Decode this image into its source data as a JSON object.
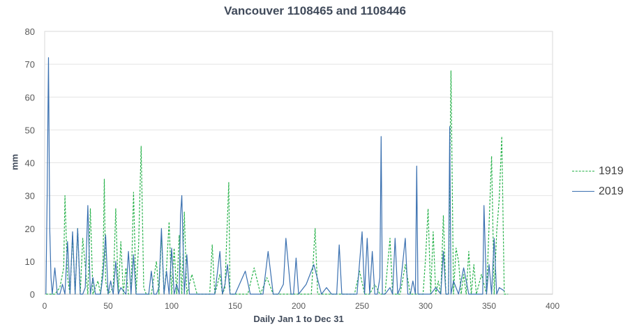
{
  "chart_data": {
    "type": "line",
    "title": "Vancouver 1108465 and 1108446",
    "xlabel": "Daily Jan 1 to Dec 31",
    "ylabel": "mm",
    "xlim": [
      0,
      400
    ],
    "ylim": [
      0,
      80
    ],
    "xticks": [
      0,
      50,
      100,
      150,
      200,
      250,
      300,
      350,
      400
    ],
    "yticks": [
      0,
      10,
      20,
      30,
      40,
      50,
      60,
      70,
      80
    ],
    "grid": "horizontal",
    "legend_position": "right",
    "series": [
      {
        "name": "1919",
        "color": "#27b24a",
        "dash": "dashed",
        "x": [
          1,
          8,
          12,
          15,
          16,
          18,
          20,
          22,
          24,
          26,
          28,
          30,
          34,
          36,
          38,
          42,
          44,
          46,
          47,
          48,
          50,
          54,
          56,
          58,
          60,
          62,
          64,
          66,
          68,
          70,
          72,
          74,
          76,
          78,
          80,
          84,
          88,
          90,
          92,
          94,
          96,
          98,
          100,
          102,
          104,
          106,
          108,
          110,
          112,
          116,
          120,
          124,
          130,
          132,
          134,
          138,
          140,
          142,
          145,
          146,
          148,
          150,
          160,
          165,
          170,
          175,
          180,
          185,
          195,
          205,
          210,
          213,
          215,
          220,
          225,
          240,
          244,
          248,
          252,
          256,
          260,
          264,
          268,
          272,
          274,
          276,
          280,
          284,
          288,
          290,
          294,
          298,
          300,
          302,
          304,
          306,
          308,
          310,
          312,
          314,
          316,
          318,
          320,
          322,
          324,
          326,
          328,
          330,
          332,
          334,
          336,
          338,
          340,
          344,
          348,
          352,
          354,
          356,
          358,
          360,
          362,
          365
        ],
        "y": [
          0,
          0,
          2,
          8,
          30,
          5,
          0,
          18,
          0,
          20,
          0,
          17,
          0,
          26,
          0,
          4,
          0,
          10,
          35,
          4,
          0,
          2,
          26,
          0,
          16,
          0,
          8,
          0,
          0,
          31,
          0,
          15,
          45,
          2,
          0,
          0,
          10,
          0,
          18,
          0,
          8,
          22,
          0,
          14,
          0,
          18,
          0,
          25,
          0,
          6,
          0,
          0,
          0,
          15,
          0,
          6,
          0,
          2,
          34,
          0,
          0,
          0,
          0,
          8,
          0,
          5,
          0,
          0,
          0,
          0,
          0,
          20,
          0,
          0,
          0,
          0,
          0,
          7,
          0,
          0,
          3,
          0,
          0,
          17,
          0,
          0,
          0,
          9,
          0,
          0,
          0,
          0,
          11,
          26,
          0,
          19,
          0,
          4,
          0,
          24,
          0,
          0,
          68,
          0,
          14,
          10,
          0,
          6,
          0,
          13,
          0,
          9,
          0,
          6,
          0,
          42,
          0,
          19,
          29,
          48,
          0,
          0
        ]
      },
      {
        "name": "2019",
        "color": "#3a70b0",
        "dash": "solid",
        "x": [
          1,
          2,
          3,
          4,
          5,
          6,
          8,
          10,
          12,
          14,
          16,
          18,
          20,
          22,
          24,
          26,
          28,
          30,
          32,
          34,
          36,
          38,
          40,
          44,
          46,
          48,
          50,
          52,
          54,
          56,
          58,
          60,
          64,
          66,
          68,
          70,
          72,
          74,
          76,
          82,
          84,
          86,
          88,
          90,
          92,
          94,
          96,
          98,
          100,
          102,
          104,
          106,
          107,
          108,
          110,
          112,
          114,
          118,
          122,
          126,
          130,
          134,
          138,
          140,
          142,
          144,
          146,
          150,
          158,
          162,
          166,
          172,
          176,
          180,
          184,
          188,
          190,
          194,
          196,
          198,
          200,
          206,
          212,
          218,
          222,
          226,
          230,
          232,
          234,
          240,
          246,
          250,
          252,
          254,
          256,
          258,
          260,
          262,
          264,
          265,
          266,
          268,
          272,
          274,
          276,
          278,
          280,
          284,
          286,
          288,
          290,
          292,
          293,
          294,
          296,
          300,
          304,
          308,
          312,
          314,
          316,
          318,
          319,
          320,
          322,
          326,
          330,
          334,
          338,
          342,
          345,
          346,
          348,
          350,
          352,
          354,
          356,
          358,
          362
        ],
        "y": [
          0,
          30,
          72,
          20,
          5,
          0,
          8,
          0,
          0,
          3,
          0,
          16,
          0,
          19,
          0,
          20,
          0,
          0,
          2,
          27,
          0,
          5,
          0,
          0,
          6,
          18,
          0,
          4,
          0,
          10,
          0,
          2,
          0,
          13,
          0,
          12,
          0,
          0,
          0,
          0,
          7,
          0,
          0,
          2,
          20,
          0,
          7,
          0,
          14,
          0,
          3,
          0,
          24,
          30,
          0,
          12,
          0,
          0,
          0,
          0,
          0,
          0,
          13,
          0,
          3,
          9,
          0,
          0,
          7,
          0,
          0,
          0,
          13,
          0,
          0,
          3,
          17,
          0,
          0,
          11,
          0,
          3,
          9,
          0,
          2,
          0,
          0,
          15,
          0,
          0,
          0,
          19,
          0,
          17,
          0,
          13,
          0,
          0,
          5,
          48,
          0,
          0,
          2,
          0,
          17,
          0,
          2,
          17,
          0,
          0,
          4,
          0,
          39,
          0,
          0,
          0,
          0,
          2,
          0,
          13,
          0,
          0,
          51,
          0,
          4,
          0,
          8,
          0,
          0,
          0,
          0,
          27,
          0,
          9,
          0,
          17,
          0,
          2,
          1
        ]
      }
    ]
  }
}
